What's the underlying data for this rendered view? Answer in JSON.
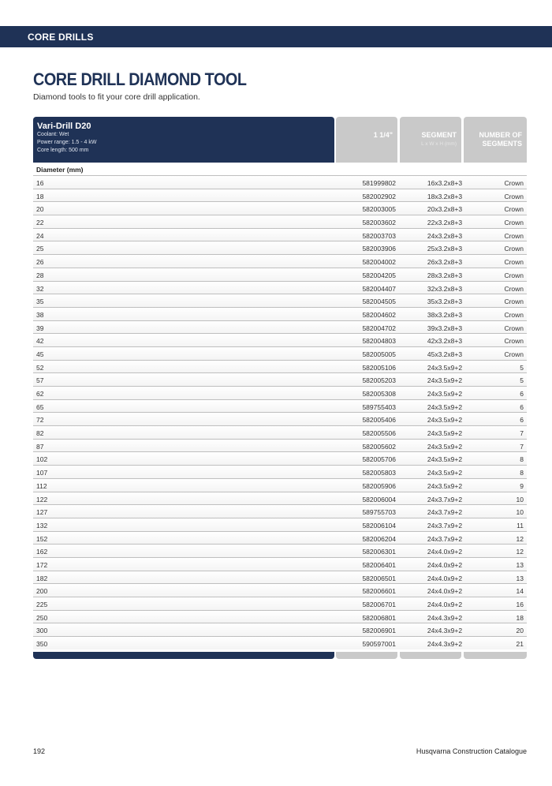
{
  "section": "CORE DRILLS",
  "title": "CORE DRILL DIAMOND TOOL",
  "subtitle": "Diamond tools to fit your core drill application.",
  "product": {
    "name": "Vari-Drill D20",
    "coolant": "Coolant: Wet",
    "power": "Power range: 1.5 - 4 kW",
    "core_length": "Core length: 500 mm"
  },
  "columns": {
    "c1": "1 1/4\"",
    "c2": "SEGMENT",
    "c2_sub": "L x W x H (mm)",
    "c3": "NUMBER OF SEGMENTS"
  },
  "diameter_label": "Diameter (mm)",
  "rows": [
    [
      "16",
      "581999802",
      "16x3.2x8+3",
      "Crown"
    ],
    [
      "18",
      "582002902",
      "18x3.2x8+3",
      "Crown"
    ],
    [
      "20",
      "582003005",
      "20x3.2x8+3",
      "Crown"
    ],
    [
      "22",
      "582003602",
      "22x3.2x8+3",
      "Crown"
    ],
    [
      "24",
      "582003703",
      "24x3.2x8+3",
      "Crown"
    ],
    [
      "25",
      "582003906",
      "25x3.2x8+3",
      "Crown"
    ],
    [
      "26",
      "582004002",
      "26x3.2x8+3",
      "Crown"
    ],
    [
      "28",
      "582004205",
      "28x3.2x8+3",
      "Crown"
    ],
    [
      "32",
      "582004407",
      "32x3.2x8+3",
      "Crown"
    ],
    [
      "35",
      "582004505",
      "35x3.2x8+3",
      "Crown"
    ],
    [
      "38",
      "582004602",
      "38x3.2x8+3",
      "Crown"
    ],
    [
      "39",
      "582004702",
      "39x3.2x8+3",
      "Crown"
    ],
    [
      "42",
      "582004803",
      "42x3.2x8+3",
      "Crown"
    ],
    [
      "45",
      "582005005",
      "45x3.2x8+3",
      "Crown"
    ],
    [
      "52",
      "582005106",
      "24x3.5x9+2",
      "5"
    ],
    [
      "57",
      "582005203",
      "24x3.5x9+2",
      "5"
    ],
    [
      "62",
      "582005308",
      "24x3.5x9+2",
      "6"
    ],
    [
      "65",
      "589755403",
      "24x3.5x9+2",
      "6"
    ],
    [
      "72",
      "582005406",
      "24x3.5x9+2",
      "6"
    ],
    [
      "82",
      "582005506",
      "24x3.5x9+2",
      "7"
    ],
    [
      "87",
      "582005602",
      "24x3.5x9+2",
      "7"
    ],
    [
      "102",
      "582005706",
      "24x3.5x9+2",
      "8"
    ],
    [
      "107",
      "582005803",
      "24x3.5x9+2",
      "8"
    ],
    [
      "112",
      "582005906",
      "24x3.5x9+2",
      "9"
    ],
    [
      "122",
      "582006004",
      "24x3.7x9+2",
      "10"
    ],
    [
      "127",
      "589755703",
      "24x3.7x9+2",
      "10"
    ],
    [
      "132",
      "582006104",
      "24x3.7x9+2",
      "11"
    ],
    [
      "152",
      "582006204",
      "24x3.7x9+2",
      "12"
    ],
    [
      "162",
      "582006301",
      "24x4.0x9+2",
      "12"
    ],
    [
      "172",
      "582006401",
      "24x4.0x9+2",
      "13"
    ],
    [
      "182",
      "582006501",
      "24x4.0x9+2",
      "13"
    ],
    [
      "200",
      "582006601",
      "24x4.0x9+2",
      "14"
    ],
    [
      "225",
      "582006701",
      "24x4.0x9+2",
      "16"
    ],
    [
      "250",
      "582006801",
      "24x4.3x9+2",
      "18"
    ],
    [
      "300",
      "582006901",
      "24x4.3x9+2",
      "20"
    ],
    [
      "350",
      "590597001",
      "24x4.3x9+2",
      "21"
    ]
  ],
  "footer": {
    "page": "192",
    "catalogue": "Husqvarna Construction Catalogue"
  },
  "colors": {
    "navy": "#1f3256",
    "grey": "#c9c9c9"
  }
}
